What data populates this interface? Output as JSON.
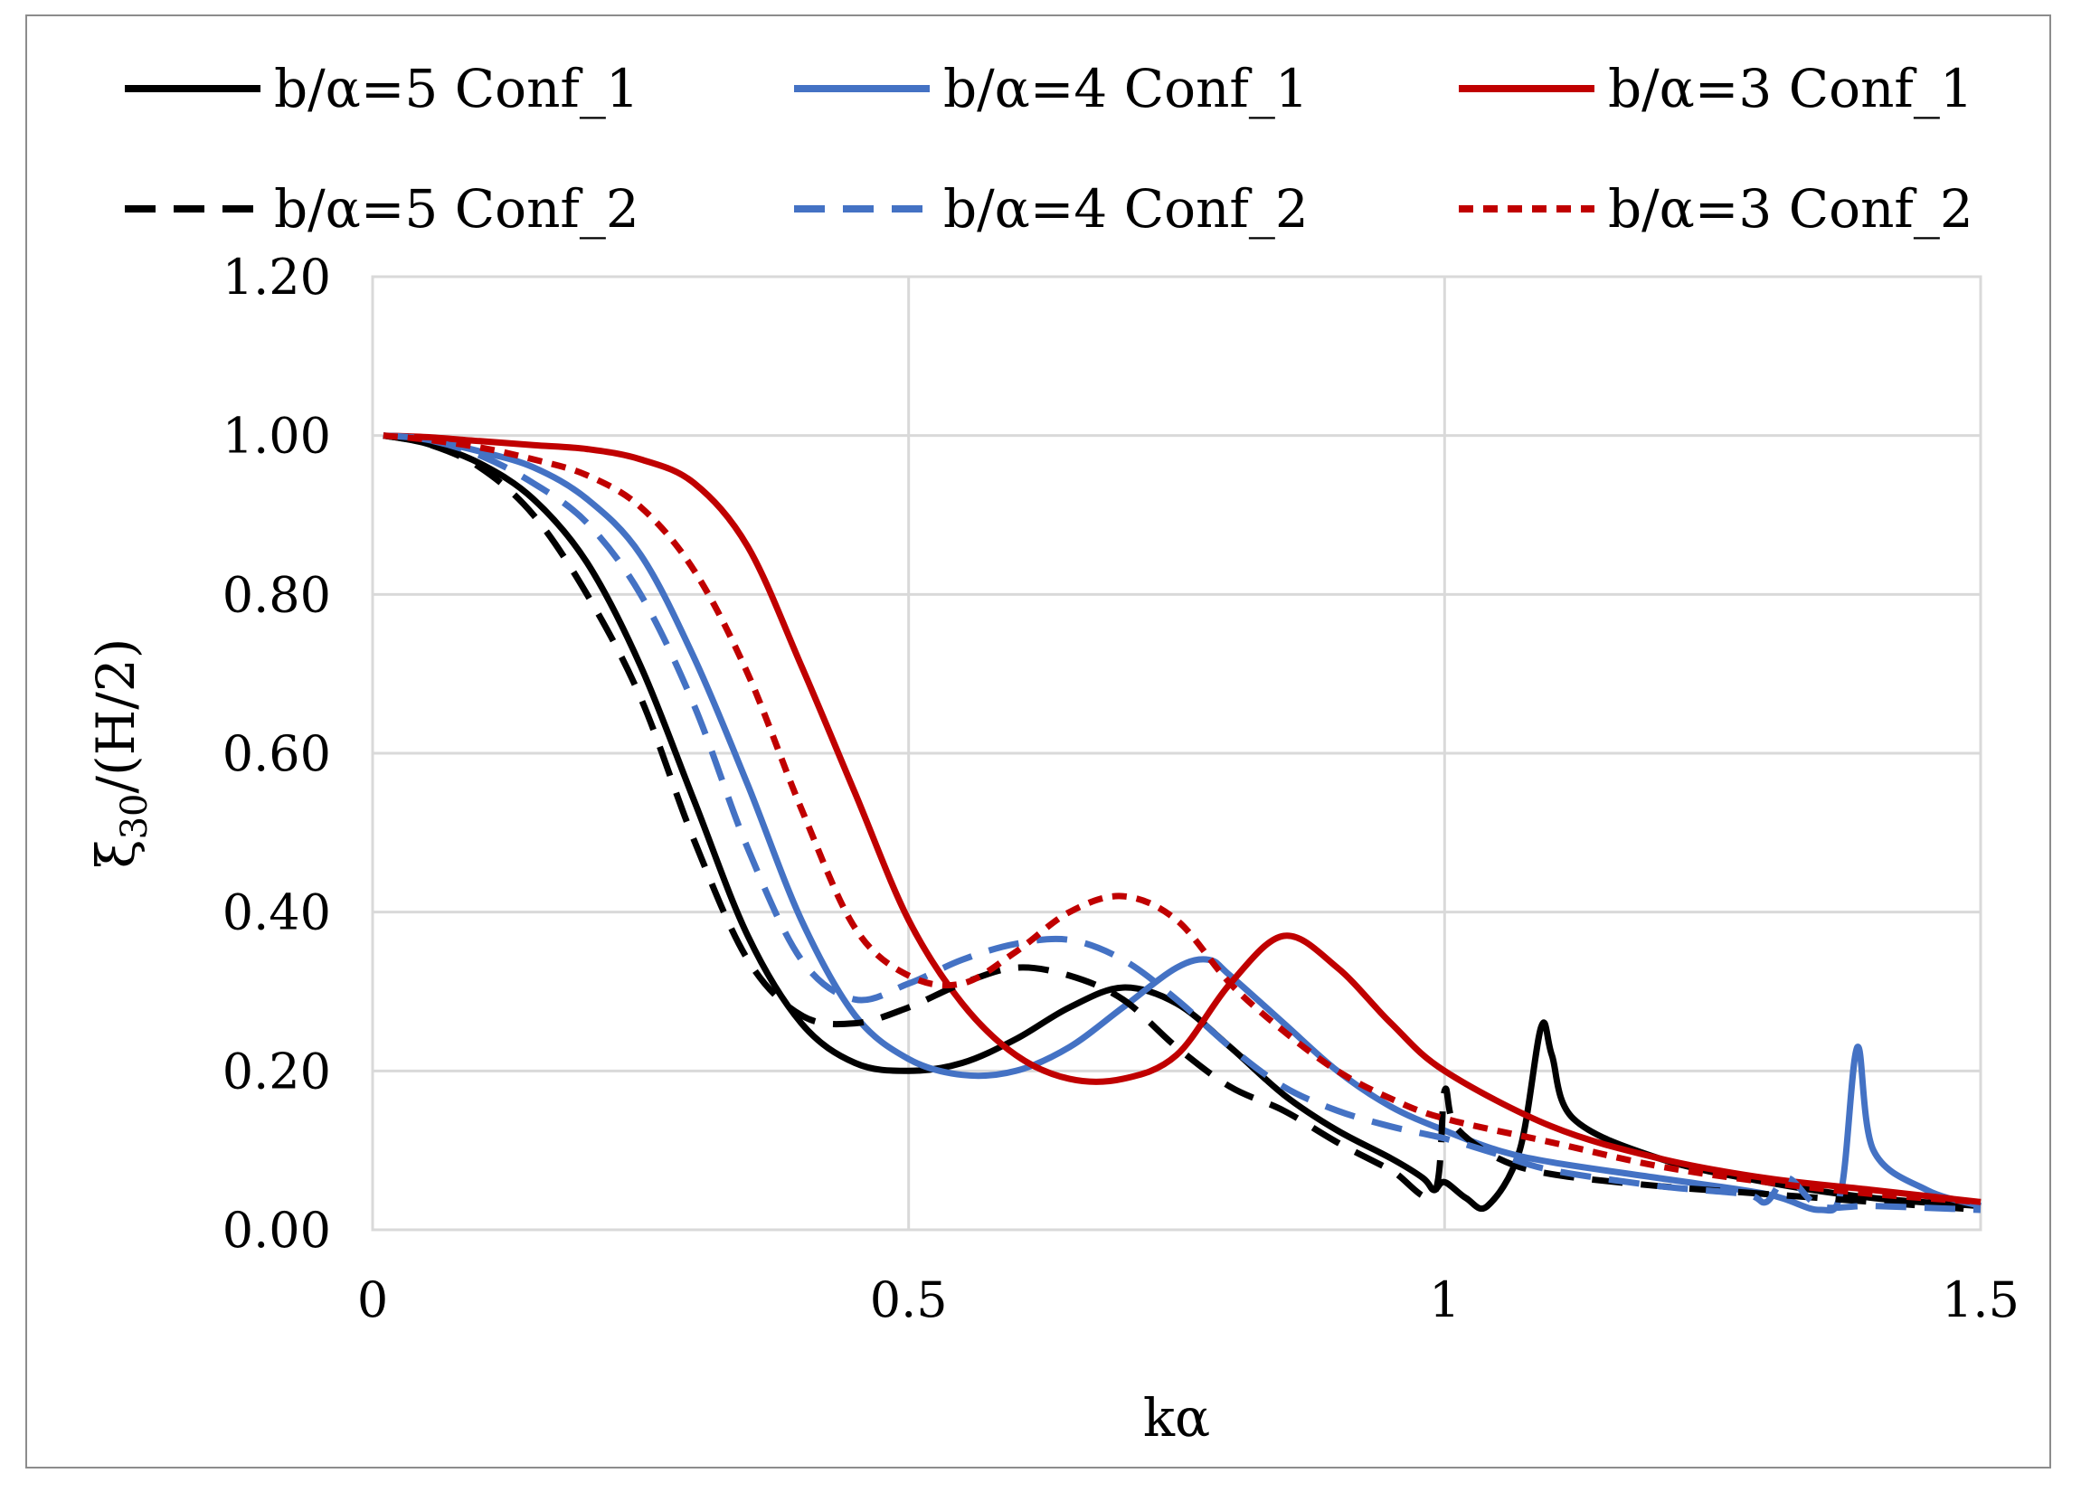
{
  "chart_data": {
    "type": "line",
    "title": "",
    "xlabel": "kα",
    "ylabel_main": "ξ",
    "ylabel_sub": "30",
    "ylabel_tail": "/(H/2)",
    "xlim": [
      0,
      1.5
    ],
    "ylim": [
      0,
      1.2
    ],
    "x_ticks": [
      "0",
      "0.5",
      "1",
      "1.5"
    ],
    "y_ticks": [
      "0.00",
      "0.20",
      "0.40",
      "0.60",
      "0.80",
      "1.00",
      "1.20"
    ],
    "grid": true,
    "legend_position": "top",
    "colors": {
      "black": "#000000",
      "blue": "#4472c4",
      "red": "#c00000",
      "grid": "#d9d9d9"
    },
    "series": [
      {
        "name": "b/α=5 Conf_1",
        "color": "#000000",
        "dash": "solid",
        "points": [
          [
            0.01,
            1.0
          ],
          [
            0.05,
            0.99
          ],
          [
            0.1,
            0.965
          ],
          [
            0.15,
            0.92
          ],
          [
            0.2,
            0.84
          ],
          [
            0.25,
            0.71
          ],
          [
            0.3,
            0.54
          ],
          [
            0.35,
            0.37
          ],
          [
            0.4,
            0.26
          ],
          [
            0.45,
            0.21
          ],
          [
            0.5,
            0.2
          ],
          [
            0.55,
            0.21
          ],
          [
            0.6,
            0.24
          ],
          [
            0.65,
            0.28
          ],
          [
            0.7,
            0.305
          ],
          [
            0.75,
            0.285
          ],
          [
            0.8,
            0.23
          ],
          [
            0.85,
            0.17
          ],
          [
            0.9,
            0.125
          ],
          [
            0.95,
            0.09
          ],
          [
            0.98,
            0.065
          ],
          [
            0.99,
            0.05
          ],
          [
            1.0,
            0.06
          ],
          [
            1.02,
            0.04
          ],
          [
            1.04,
            0.03
          ],
          [
            1.07,
            0.1
          ],
          [
            1.09,
            0.255
          ],
          [
            1.1,
            0.22
          ],
          [
            1.12,
            0.14
          ],
          [
            1.2,
            0.09
          ],
          [
            1.3,
            0.06
          ],
          [
            1.4,
            0.04
          ],
          [
            1.5,
            0.03
          ]
        ]
      },
      {
        "name": "b/α=4 Conf_1",
        "color": "#4472c4",
        "dash": "solid",
        "points": [
          [
            0.01,
            1.0
          ],
          [
            0.05,
            0.995
          ],
          [
            0.1,
            0.98
          ],
          [
            0.15,
            0.96
          ],
          [
            0.2,
            0.92
          ],
          [
            0.25,
            0.85
          ],
          [
            0.3,
            0.72
          ],
          [
            0.35,
            0.56
          ],
          [
            0.4,
            0.39
          ],
          [
            0.45,
            0.27
          ],
          [
            0.5,
            0.215
          ],
          [
            0.55,
            0.195
          ],
          [
            0.6,
            0.2
          ],
          [
            0.65,
            0.23
          ],
          [
            0.7,
            0.28
          ],
          [
            0.75,
            0.33
          ],
          [
            0.78,
            0.34
          ],
          [
            0.8,
            0.32
          ],
          [
            0.85,
            0.26
          ],
          [
            0.9,
            0.2
          ],
          [
            0.95,
            0.155
          ],
          [
            1.0,
            0.125
          ],
          [
            1.05,
            0.1
          ],
          [
            1.1,
            0.085
          ],
          [
            1.2,
            0.065
          ],
          [
            1.3,
            0.045
          ],
          [
            1.35,
            0.025
          ],
          [
            1.37,
            0.05
          ],
          [
            1.385,
            0.23
          ],
          [
            1.4,
            0.1
          ],
          [
            1.45,
            0.05
          ],
          [
            1.5,
            0.03
          ]
        ]
      },
      {
        "name": "b/α=3 Conf_1",
        "color": "#c00000",
        "dash": "solid",
        "points": [
          [
            0.01,
            1.0
          ],
          [
            0.05,
            0.998
          ],
          [
            0.1,
            0.993
          ],
          [
            0.15,
            0.988
          ],
          [
            0.2,
            0.983
          ],
          [
            0.25,
            0.97
          ],
          [
            0.3,
            0.94
          ],
          [
            0.35,
            0.86
          ],
          [
            0.4,
            0.71
          ],
          [
            0.45,
            0.55
          ],
          [
            0.5,
            0.39
          ],
          [
            0.55,
            0.285
          ],
          [
            0.6,
            0.22
          ],
          [
            0.65,
            0.19
          ],
          [
            0.7,
            0.19
          ],
          [
            0.75,
            0.22
          ],
          [
            0.8,
            0.31
          ],
          [
            0.85,
            0.37
          ],
          [
            0.9,
            0.33
          ],
          [
            0.95,
            0.26
          ],
          [
            1.0,
            0.2
          ],
          [
            1.1,
            0.13
          ],
          [
            1.2,
            0.09
          ],
          [
            1.3,
            0.065
          ],
          [
            1.4,
            0.05
          ],
          [
            1.5,
            0.035
          ]
        ]
      },
      {
        "name": "b/α=5 Conf_2",
        "color": "#000000",
        "dash": "dashed",
        "points": [
          [
            0.01,
            1.0
          ],
          [
            0.05,
            0.99
          ],
          [
            0.1,
            0.96
          ],
          [
            0.15,
            0.9
          ],
          [
            0.2,
            0.8
          ],
          [
            0.25,
            0.67
          ],
          [
            0.3,
            0.49
          ],
          [
            0.35,
            0.34
          ],
          [
            0.4,
            0.27
          ],
          [
            0.45,
            0.26
          ],
          [
            0.5,
            0.28
          ],
          [
            0.55,
            0.31
          ],
          [
            0.6,
            0.33
          ],
          [
            0.65,
            0.32
          ],
          [
            0.7,
            0.29
          ],
          [
            0.75,
            0.23
          ],
          [
            0.8,
            0.18
          ],
          [
            0.85,
            0.15
          ],
          [
            0.9,
            0.11
          ],
          [
            0.95,
            0.075
          ],
          [
            0.99,
            0.045
          ],
          [
            1.0,
            0.175
          ],
          [
            1.01,
            0.13
          ],
          [
            1.05,
            0.09
          ],
          [
            1.1,
            0.07
          ],
          [
            1.2,
            0.055
          ],
          [
            1.3,
            0.045
          ],
          [
            1.4,
            0.035
          ],
          [
            1.5,
            0.025
          ]
        ]
      },
      {
        "name": "b/α=4 Conf_2",
        "color": "#4472c4",
        "dash": "dashed",
        "points": [
          [
            0.01,
            1.0
          ],
          [
            0.05,
            0.995
          ],
          [
            0.1,
            0.975
          ],
          [
            0.15,
            0.94
          ],
          [
            0.2,
            0.89
          ],
          [
            0.25,
            0.8
          ],
          [
            0.3,
            0.66
          ],
          [
            0.35,
            0.48
          ],
          [
            0.4,
            0.34
          ],
          [
            0.45,
            0.29
          ],
          [
            0.5,
            0.31
          ],
          [
            0.55,
            0.34
          ],
          [
            0.6,
            0.36
          ],
          [
            0.65,
            0.365
          ],
          [
            0.7,
            0.34
          ],
          [
            0.75,
            0.29
          ],
          [
            0.8,
            0.23
          ],
          [
            0.85,
            0.18
          ],
          [
            0.9,
            0.15
          ],
          [
            0.95,
            0.13
          ],
          [
            1.0,
            0.115
          ],
          [
            1.05,
            0.095
          ],
          [
            1.1,
            0.075
          ],
          [
            1.2,
            0.055
          ],
          [
            1.28,
            0.045
          ],
          [
            1.3,
            0.035
          ],
          [
            1.32,
            0.065
          ],
          [
            1.35,
            0.03
          ],
          [
            1.4,
            0.03
          ],
          [
            1.5,
            0.025
          ]
        ]
      },
      {
        "name": "b/α=3 Conf_2",
        "color": "#c00000",
        "dash": "dotted",
        "points": [
          [
            0.01,
            1.0
          ],
          [
            0.05,
            0.995
          ],
          [
            0.1,
            0.985
          ],
          [
            0.15,
            0.97
          ],
          [
            0.2,
            0.95
          ],
          [
            0.25,
            0.91
          ],
          [
            0.3,
            0.83
          ],
          [
            0.35,
            0.7
          ],
          [
            0.4,
            0.53
          ],
          [
            0.45,
            0.38
          ],
          [
            0.5,
            0.32
          ],
          [
            0.55,
            0.31
          ],
          [
            0.6,
            0.35
          ],
          [
            0.65,
            0.4
          ],
          [
            0.7,
            0.42
          ],
          [
            0.75,
            0.39
          ],
          [
            0.8,
            0.31
          ],
          [
            0.85,
            0.25
          ],
          [
            0.9,
            0.2
          ],
          [
            0.95,
            0.165
          ],
          [
            1.0,
            0.14
          ],
          [
            1.1,
            0.11
          ],
          [
            1.2,
            0.08
          ],
          [
            1.3,
            0.06
          ],
          [
            1.4,
            0.045
          ],
          [
            1.5,
            0.035
          ]
        ]
      }
    ]
  }
}
